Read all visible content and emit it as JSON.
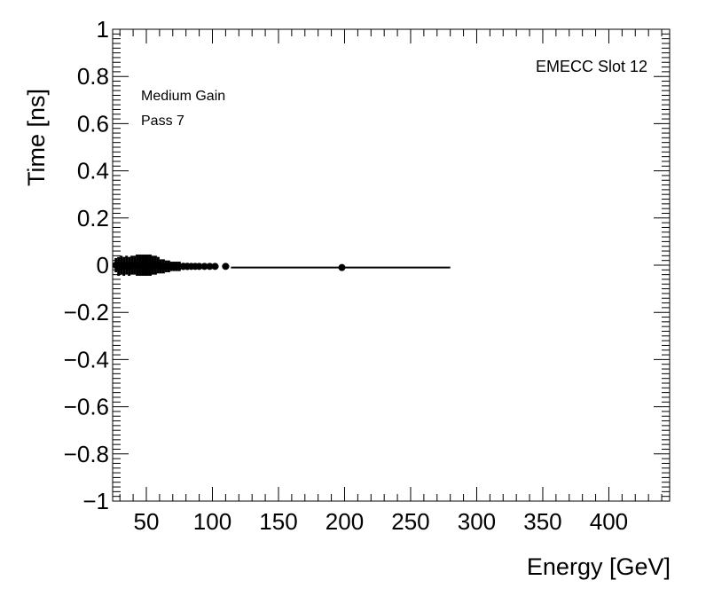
{
  "chart_data": {
    "type": "scatter",
    "title": "",
    "xlabel": "Energy [GeV]",
    "ylabel": "Time [ns]",
    "xlim": [
      24.5,
      446
    ],
    "ylim": [
      -1,
      1
    ],
    "grid": false,
    "x_ticks": [
      50,
      100,
      150,
      200,
      250,
      300,
      350,
      400
    ],
    "y_ticks": [
      -1,
      -0.8,
      -0.6,
      -0.4,
      -0.2,
      0,
      0.2,
      0.4,
      0.6,
      0.8,
      1
    ],
    "x_tick_labels": [
      "50",
      "100",
      "150",
      "200",
      "250",
      "300",
      "350",
      "400"
    ],
    "y_tick_labels": [
      "−1",
      "−0.8",
      "−0.6",
      "−0.4",
      "−0.2",
      "0",
      "0.2",
      "0.4",
      "0.6",
      "0.8",
      "1"
    ],
    "annotations": [
      "EMECC Slot 12",
      "Medium Gain",
      "Pass 7"
    ],
    "points": {
      "x": [
        27,
        29,
        31,
        33,
        35,
        37,
        39,
        41,
        43,
        45,
        47,
        49,
        51,
        53,
        55,
        57,
        59,
        61,
        63,
        65,
        67,
        69,
        71,
        73,
        75,
        78,
        81,
        84,
        87,
        90,
        94,
        98,
        102,
        110,
        198
      ],
      "y": [
        0.0,
        -0.005,
        0.0,
        -0.005,
        0.0,
        -0.005,
        0.0,
        0.0,
        0.0,
        0.0,
        0.0,
        0.0,
        0.0,
        0.0,
        0.0,
        0.0,
        0.0,
        -0.005,
        -0.005,
        -0.005,
        -0.005,
        -0.005,
        -0.005,
        -0.005,
        -0.005,
        -0.005,
        -0.005,
        -0.005,
        -0.005,
        -0.005,
        -0.005,
        -0.005,
        -0.005,
        -0.005,
        -0.01
      ],
      "yerr": [
        0.03,
        0.04,
        0.04,
        0.04,
        0.04,
        0.04,
        0.04,
        0.04,
        0.045,
        0.045,
        0.045,
        0.045,
        0.045,
        0.045,
        0.04,
        0.04,
        0.035,
        0.03,
        0.03,
        0.025,
        0.025,
        0.02,
        0.02,
        0.02,
        0.02,
        0.015,
        0.015,
        0.012,
        0.012,
        0.01,
        0.01,
        0.01,
        0.01,
        0.01,
        0.01
      ],
      "color": "#000000"
    },
    "fit_line": {
      "x": [
        114,
        280
      ],
      "y": [
        -0.01,
        -0.01
      ],
      "color": "#000000"
    }
  }
}
